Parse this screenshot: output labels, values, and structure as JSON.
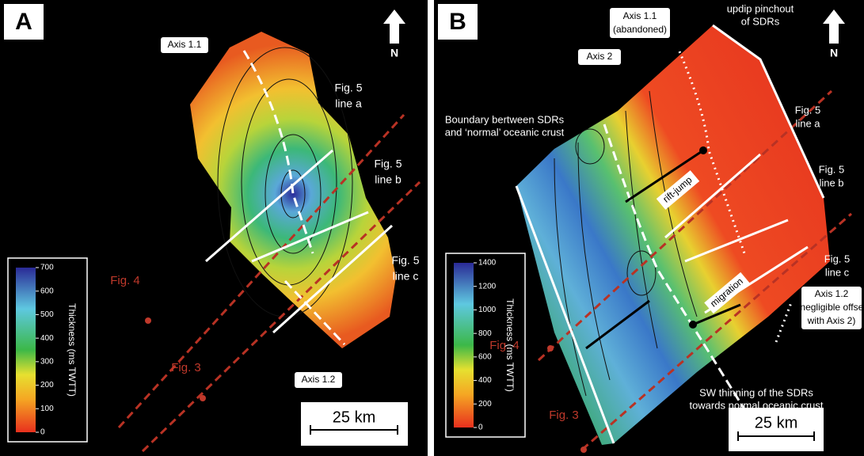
{
  "panel_a": {
    "label": "A",
    "north": "N",
    "scale": "25 km",
    "colorbar": {
      "title": "Thickness (ms TWTT)",
      "ticks": [
        0,
        100,
        200,
        300,
        400,
        500,
        600,
        700
      ]
    },
    "axis_1_1": "Axis 1.1",
    "axis_1_2": "Axis 1.2",
    "fig5_a": [
      "Fig. 5",
      "line a"
    ],
    "fig5_b": [
      "Fig. 5",
      "line b"
    ],
    "fig5_c": [
      "Fig. 5",
      "line c"
    ],
    "fig4": "Fig. 4",
    "fig3": "Fig. 3"
  },
  "panel_b": {
    "label": "B",
    "north": "N",
    "scale": "25 km",
    "colorbar": {
      "title": "Thickness (ms TWTT)",
      "ticks": [
        0,
        200,
        400,
        600,
        800,
        1000,
        1200,
        1400
      ]
    },
    "axis_1_1": [
      "Axis 1.1",
      "(abandoned)"
    ],
    "pinchout": [
      "updip pinchout",
      "of SDRs"
    ],
    "axis_2": "Axis 2",
    "boundary": [
      "Boundary bertween SDRs",
      "and ‘normal’ oceanic crust"
    ],
    "fig5_a": [
      "Fig. 5",
      "line a"
    ],
    "fig5_b": [
      "Fig. 5",
      "line b"
    ],
    "fig5_c": [
      "Fig. 5",
      "line c"
    ],
    "rift_jump": "rift-jump",
    "migration": "migration",
    "axis_1_2": [
      "Axis 1.2",
      "(negligible offset",
      "with Axis 2)"
    ],
    "fig4": "Fig. 4",
    "fig3": "Fig. 3",
    "thinning": [
      "SW thinning of the SDRs",
      "towards normal oceanic crust"
    ]
  }
}
